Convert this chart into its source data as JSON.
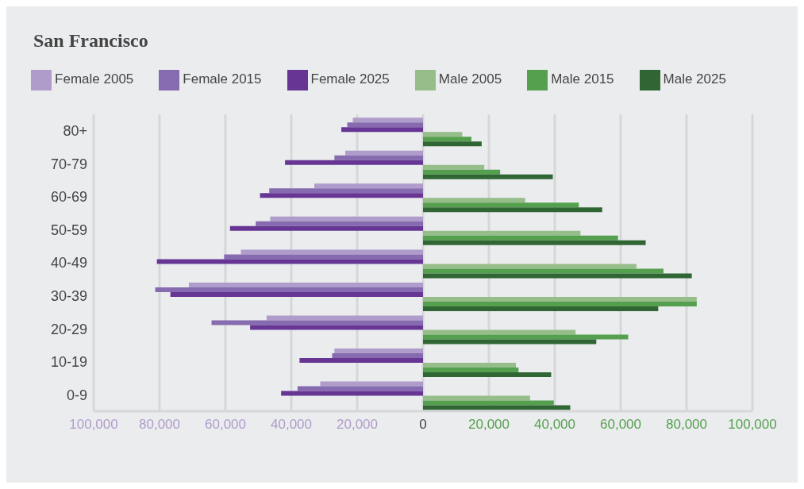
{
  "chart_data": {
    "type": "bar",
    "orientation": "horizontal",
    "title": "San Francisco",
    "categories": [
      "80+",
      "70-79",
      "60-69",
      "50-59",
      "40-49",
      "30-39",
      "20-29",
      "10-19",
      "0-9"
    ],
    "series": [
      {
        "name": "Female 2005",
        "color": "#b09ccb",
        "values": [
          -21300,
          -23600,
          -33000,
          -46400,
          -55300,
          -71100,
          -47500,
          -26900,
          -31200
        ]
      },
      {
        "name": "Female 2015",
        "color": "#866bb0",
        "values": [
          -23000,
          -26900,
          -46700,
          -50800,
          -60400,
          -81300,
          -64200,
          -27600,
          -38100
        ]
      },
      {
        "name": "Female 2025",
        "color": "#673695",
        "values": [
          -24800,
          -41900,
          -49500,
          -58600,
          -80800,
          -76700,
          -52500,
          -37500,
          -43100
        ]
      },
      {
        "name": "Male 2005",
        "color": "#97bd8a",
        "values": [
          11900,
          18600,
          31000,
          47800,
          64800,
          83100,
          46300,
          28200,
          32500
        ]
      },
      {
        "name": "Male 2015",
        "color": "#55a04e",
        "values": [
          14700,
          23400,
          47300,
          59200,
          73000,
          83100,
          62300,
          29000,
          39700
        ]
      },
      {
        "name": "Male 2025",
        "color": "#306634",
        "values": [
          17800,
          39400,
          54400,
          67600,
          81600,
          71400,
          52600,
          38900,
          44700
        ]
      }
    ],
    "xlim": [
      -100000,
      100000
    ],
    "xticks": [
      {
        "value": -100000,
        "label": "100,000"
      },
      {
        "value": -80000,
        "label": "80,000"
      },
      {
        "value": -60000,
        "label": "60,000"
      },
      {
        "value": -40000,
        "label": "40,000"
      },
      {
        "value": -20000,
        "label": "20,000"
      },
      0,
      {
        "value": 20000,
        "label": "20,000"
      },
      {
        "value": 40000,
        "label": "40,000"
      },
      {
        "value": 60000,
        "label": "60,000"
      },
      {
        "value": 80000,
        "label": "80,000"
      },
      {
        "value": 100000,
        "label": "100,000"
      }
    ],
    "grid": "x",
    "legend": "top"
  }
}
